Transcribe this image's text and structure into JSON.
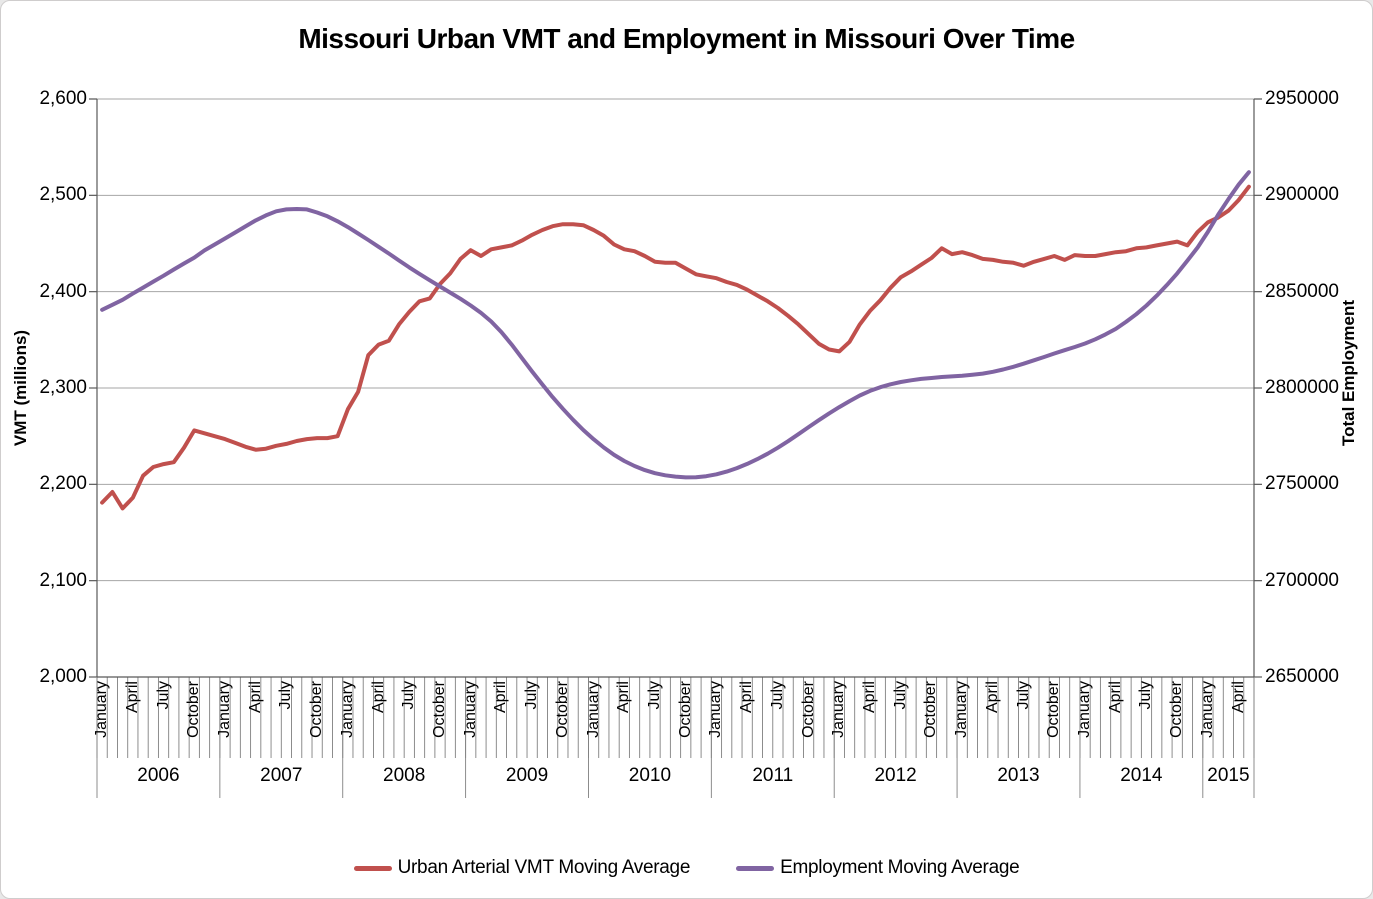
{
  "chart_data": {
    "type": "line",
    "title": "Missouri Urban VMT and Employment in Missouri Over Time",
    "x_axis": {
      "unit": "month",
      "start": "January 2006",
      "end": "May 2015",
      "categories_count": 113,
      "month_tick_labels": [
        "January",
        "April",
        "July",
        "October"
      ],
      "label_interval_months": 3,
      "years": [
        {
          "label": "2006",
          "months": 12
        },
        {
          "label": "2007",
          "months": 12
        },
        {
          "label": "2008",
          "months": 12
        },
        {
          "label": "2009",
          "months": 12
        },
        {
          "label": "2010",
          "months": 12
        },
        {
          "label": "2011",
          "months": 12
        },
        {
          "label": "2012",
          "months": 12
        },
        {
          "label": "2013",
          "months": 12
        },
        {
          "label": "2014",
          "months": 12
        },
        {
          "label": "2015",
          "months": 5
        }
      ]
    },
    "left_axis": {
      "title": "VMT (millions)",
      "min": 2000,
      "max": 2600,
      "step": 100,
      "tick_labels": [
        "2,600",
        "2,500",
        "2,400",
        "2,300",
        "2,200",
        "2,100",
        "2,000"
      ]
    },
    "right_axis": {
      "title": "Total Employment",
      "min": 2650000,
      "max": 2950000,
      "step": 50000,
      "tick_labels": [
        "2950000",
        "2900000",
        "2850000",
        "2800000",
        "2750000",
        "2700000",
        "2650000"
      ]
    },
    "grid": "horizontal-only",
    "legend_position": "bottom-center",
    "series": [
      {
        "name": "Urban Arterial VMT Moving Average",
        "axis": "left",
        "color": "#C0504D",
        "values": [
          2181,
          2192,
          2175,
          2186,
          2209,
          2218,
          2221,
          2223,
          2238,
          2256,
          2253,
          2250,
          2247,
          2243,
          2239,
          2236,
          2237,
          2240,
          2242,
          2245,
          2247,
          2248,
          2248,
          2250,
          2278,
          2296,
          2334,
          2345,
          2349,
          2366,
          2379,
          2390,
          2393,
          2408,
          2419,
          2434,
          2443,
          2437,
          2444,
          2446,
          2448,
          2453,
          2459,
          2464,
          2468,
          2470,
          2470,
          2469,
          2464,
          2458,
          2449,
          2444,
          2442,
          2437,
          2431,
          2430,
          2430,
          2424,
          2418,
          2416,
          2414,
          2410,
          2407,
          2402,
          2396,
          2390,
          2383,
          2375,
          2366,
          2356,
          2346,
          2340,
          2338,
          2348,
          2366,
          2380,
          2391,
          2404,
          2415,
          2421,
          2428,
          2435,
          2445,
          2439,
          2441,
          2438,
          2434,
          2433,
          2431,
          2430,
          2427,
          2431,
          2434,
          2437,
          2433,
          2438,
          2437,
          2437,
          2439,
          2441,
          2442,
          2445,
          2446,
          2448,
          2450,
          2452,
          2448,
          2462,
          2472,
          2477,
          2484,
          2495,
          2509
        ]
      },
      {
        "name": "Employment Moving Average",
        "axis": "right",
        "color": "#8064A2",
        "values": [
          2840600,
          2843200,
          2845800,
          2849000,
          2852100,
          2855200,
          2858300,
          2861500,
          2864600,
          2867700,
          2871400,
          2874500,
          2877600,
          2880700,
          2883900,
          2887000,
          2889600,
          2891700,
          2892700,
          2892900,
          2892700,
          2891100,
          2889100,
          2886500,
          2883500,
          2880200,
          2876800,
          2873300,
          2869800,
          2866200,
          2862600,
          2859200,
          2855900,
          2852700,
          2849500,
          2846300,
          2842800,
          2839000,
          2834500,
          2829000,
          2822500,
          2815500,
          2808500,
          2801800,
          2795300,
          2789200,
          2783500,
          2778200,
          2773400,
          2769100,
          2765300,
          2762100,
          2759500,
          2757400,
          2755800,
          2754700,
          2754000,
          2753600,
          2753700,
          2754200,
          2755200,
          2756600,
          2758400,
          2760600,
          2763100,
          2765900,
          2769000,
          2772400,
          2776000,
          2779700,
          2783300,
          2786800,
          2790100,
          2793200,
          2796100,
          2798500,
          2800400,
          2801900,
          2803100,
          2804000,
          2804700,
          2805200,
          2805700,
          2806000,
          2806400,
          2806900,
          2807500,
          2808400,
          2809600,
          2811000,
          2812600,
          2814400,
          2816100,
          2817900,
          2819600,
          2821300,
          2823100,
          2825300,
          2827800,
          2830700,
          2834300,
          2838300,
          2842800,
          2847900,
          2853500,
          2859500,
          2866100,
          2873000,
          2881000,
          2890000,
          2898000,
          2905500,
          2912000
        ]
      }
    ],
    "colors": {
      "gridline": "#A6A6A6",
      "axis_line": "#595959",
      "separator_line": "#808080",
      "text": "#000000",
      "background": "#FFFFFF"
    }
  }
}
